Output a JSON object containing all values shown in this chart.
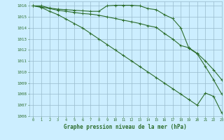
{
  "title": "Graphe pression niveau de la mer (hPa)",
  "bg_color": "#cceeff",
  "grid_color": "#99bbcc",
  "line_color": "#2d6e2d",
  "xlim": [
    -0.5,
    23
  ],
  "ylim": [
    1006.0,
    1016.4
  ],
  "yticks": [
    1006,
    1007,
    1008,
    1009,
    1010,
    1011,
    1012,
    1013,
    1014,
    1015,
    1016
  ],
  "xticks": [
    0,
    1,
    2,
    3,
    4,
    5,
    6,
    7,
    8,
    9,
    10,
    11,
    12,
    13,
    14,
    15,
    16,
    17,
    18,
    19,
    20,
    21,
    22,
    23
  ],
  "line1": [
    1016.0,
    1016.0,
    1015.8,
    1015.7,
    1015.65,
    1015.6,
    1015.55,
    1015.5,
    1015.5,
    1016.0,
    1016.05,
    1016.05,
    1016.05,
    1016.0,
    1015.75,
    1015.65,
    1015.2,
    1014.85,
    1014.0,
    1012.15,
    1011.65,
    1010.5,
    1009.3,
    1008.0
  ],
  "line2": [
    1016.0,
    1015.9,
    1015.75,
    1015.6,
    1015.5,
    1015.4,
    1015.3,
    1015.25,
    1015.15,
    1015.0,
    1014.85,
    1014.7,
    1014.55,
    1014.4,
    1014.2,
    1014.05,
    1013.5,
    1013.0,
    1012.4,
    1012.2,
    1011.7,
    1011.0,
    1010.2,
    1009.3
  ],
  "line3": [
    1016.0,
    1015.85,
    1015.5,
    1015.2,
    1014.8,
    1014.4,
    1014.0,
    1013.5,
    1013.0,
    1012.5,
    1012.0,
    1011.5,
    1011.0,
    1010.5,
    1010.0,
    1009.5,
    1009.0,
    1008.5,
    1008.0,
    1007.5,
    1007.0,
    1008.1,
    1007.8,
    1006.3
  ]
}
